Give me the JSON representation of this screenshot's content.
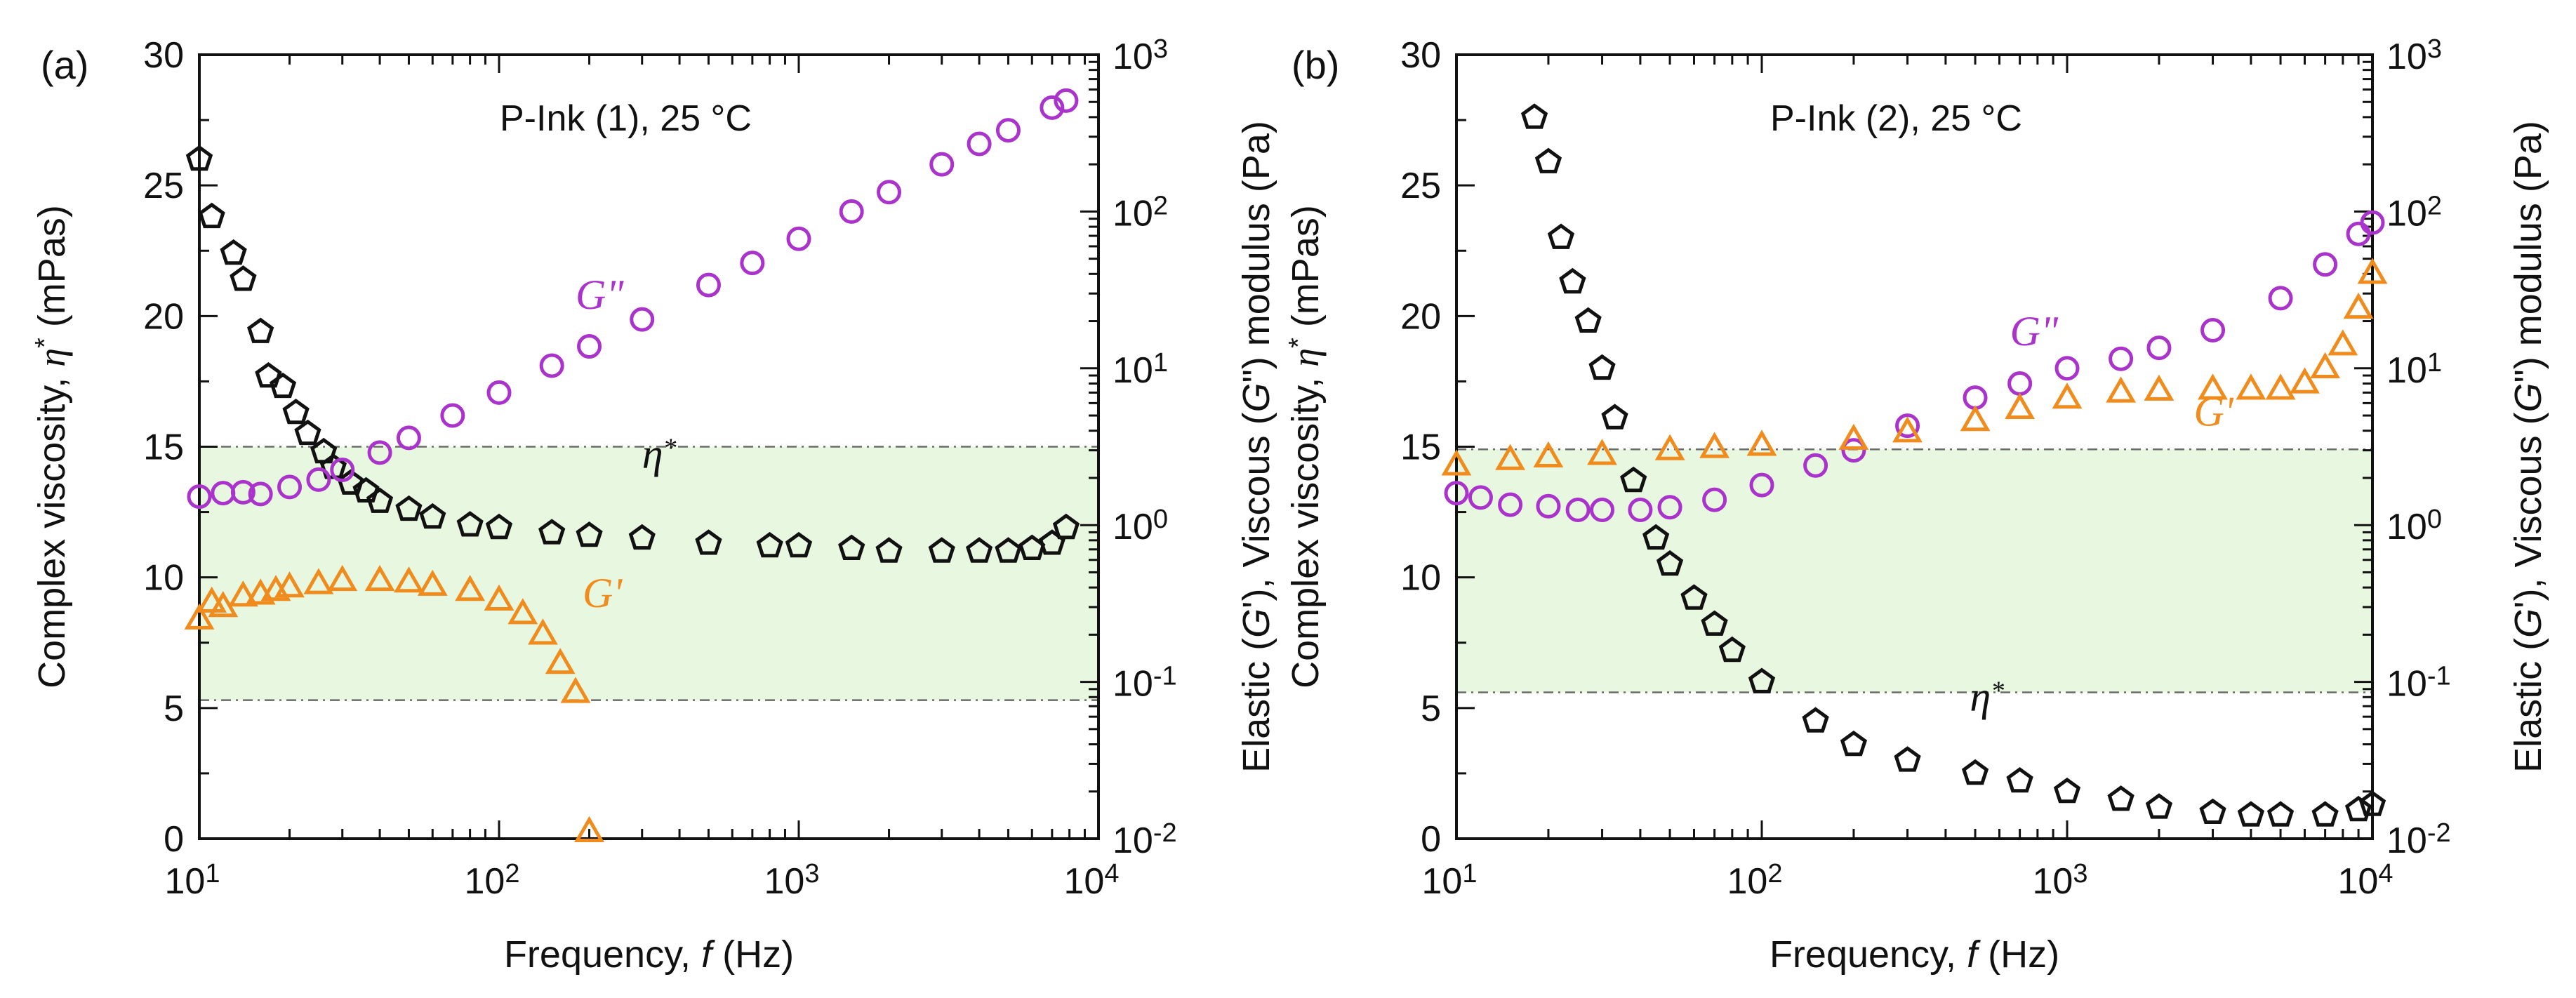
{
  "chart_data": [
    {
      "panel_label": "(a)",
      "type": "scatter",
      "annotation": "P-Ink (1), 25 °C",
      "xlabel_parts": [
        "Frequency, ",
        "f",
        " (Hz)"
      ],
      "ylabel_left_parts": [
        "Complex viscosity, ",
        "η",
        "*",
        " (mPas)"
      ],
      "ylabel_right_parts": [
        "Elastic (",
        "G",
        "'), Viscous (",
        "G",
        "\") modulus (Pa)"
      ],
      "x_scale": "log",
      "xlim": [
        10,
        10000
      ],
      "x_ticks": [
        {
          "base": "10",
          "exp": "1"
        },
        {
          "base": "10",
          "exp": "2"
        },
        {
          "base": "10",
          "exp": "3"
        },
        {
          "base": "10",
          "exp": "4"
        }
      ],
      "ylim_left": [
        0,
        30
      ],
      "y_ticks_left": [
        "0",
        "5",
        "10",
        "15",
        "20",
        "25",
        "30"
      ],
      "y_scale_right": "log",
      "ylim_right": [
        0.01,
        1000
      ],
      "y_ticks_right": [
        {
          "base": "10",
          "exp": "-2"
        },
        {
          "base": "10",
          "exp": "-1"
        },
        {
          "base": "10",
          "exp": "0"
        },
        {
          "base": "10",
          "exp": "1"
        },
        {
          "base": "10",
          "exp": "2"
        },
        {
          "base": "10",
          "exp": "3"
        }
      ],
      "band_left_units": [
        5.3,
        15.0
      ],
      "band_color": "#e8f7e0",
      "colors": {
        "eta": "#111111",
        "Gpp": "#aa33cc",
        "Gp": "#f08c1e"
      },
      "labels": {
        "eta": {
          "text": "η",
          "sup": "*",
          "x": 300,
          "y_left": 14.2
        },
        "Gpp": {
          "text": "G",
          "suffix": "\"",
          "x": 180,
          "y_right": 24
        },
        "Gp": {
          "text": "G",
          "suffix": "'",
          "x": 190,
          "y_right": 0.3
        }
      },
      "series": [
        {
          "name": "η*",
          "axis": "left",
          "marker": "pentagon",
          "x": [
            10,
            11,
            13,
            14,
            16,
            17,
            19,
            21,
            23,
            26,
            28,
            32,
            36,
            40,
            50,
            60,
            80,
            100,
            150,
            200,
            300,
            500,
            800,
            1000,
            1500,
            2000,
            3000,
            4000,
            5000,
            6000,
            7000,
            7800
          ],
          "y": [
            26.0,
            23.8,
            22.4,
            21.4,
            19.4,
            17.7,
            17.3,
            16.3,
            15.5,
            14.8,
            14.2,
            13.6,
            13.3,
            12.9,
            12.6,
            12.3,
            12.0,
            11.9,
            11.7,
            11.6,
            11.5,
            11.3,
            11.2,
            11.2,
            11.1,
            11.0,
            11.0,
            11.0,
            11.0,
            11.1,
            11.3,
            11.9
          ]
        },
        {
          "name": "G\"",
          "axis": "right",
          "marker": "circle",
          "x": [
            10,
            12,
            14,
            16,
            20,
            25,
            30,
            40,
            50,
            70,
            100,
            150,
            200,
            300,
            500,
            700,
            1000,
            1500,
            2000,
            3000,
            4000,
            5000,
            7000,
            7800
          ],
          "y": [
            1.52,
            1.6,
            1.62,
            1.58,
            1.75,
            1.95,
            2.25,
            2.9,
            3.6,
            5.0,
            7.0,
            10.4,
            13.8,
            20.5,
            34,
            47,
            67,
            100,
            133,
            200,
            270,
            330,
            460,
            510
          ]
        },
        {
          "name": "G'",
          "axis": "right",
          "marker": "triangle",
          "x": [
            10,
            11,
            12,
            14,
            16,
            18,
            20,
            25,
            30,
            40,
            50,
            60,
            80,
            100,
            120,
            140,
            160,
            180,
            200
          ],
          "y": [
            0.25,
            0.32,
            0.3,
            0.35,
            0.36,
            0.38,
            0.4,
            0.42,
            0.44,
            0.44,
            0.43,
            0.41,
            0.38,
            0.33,
            0.27,
            0.2,
            0.13,
            0.085,
            0.011
          ]
        }
      ]
    },
    {
      "panel_label": "(b)",
      "type": "scatter",
      "annotation": "P-Ink (2), 25 °C",
      "xlabel_parts": [
        "Frequency, ",
        "f",
        " (Hz)"
      ],
      "ylabel_left_parts": [
        "Complex viscosity, ",
        "η",
        "*",
        " (mPas)"
      ],
      "ylabel_right_parts": [
        "Elastic (",
        "G",
        "'), Viscous (",
        "G",
        "\") modulus (Pa)"
      ],
      "x_scale": "log",
      "xlim": [
        10,
        10000
      ],
      "x_ticks": [
        {
          "base": "10",
          "exp": "1"
        },
        {
          "base": "10",
          "exp": "2"
        },
        {
          "base": "10",
          "exp": "3"
        },
        {
          "base": "10",
          "exp": "4"
        }
      ],
      "ylim_left": [
        0,
        30
      ],
      "y_ticks_left": [
        "0",
        "5",
        "10",
        "15",
        "20",
        "25",
        "30"
      ],
      "y_scale_right": "log",
      "ylim_right": [
        0.01,
        1000
      ],
      "y_ticks_right": [
        {
          "base": "10",
          "exp": "-2"
        },
        {
          "base": "10",
          "exp": "-1"
        },
        {
          "base": "10",
          "exp": "0"
        },
        {
          "base": "10",
          "exp": "1"
        },
        {
          "base": "10",
          "exp": "2"
        },
        {
          "base": "10",
          "exp": "3"
        }
      ],
      "band_left_units": [
        5.6,
        14.9
      ],
      "band_color": "#e8f7e0",
      "colors": {
        "eta": "#111111",
        "Gpp": "#aa33cc",
        "Gp": "#f08c1e"
      },
      "labels": {
        "eta": {
          "text": "η",
          "sup": "*",
          "x": 480,
          "y_left": 4.9
        },
        "Gpp": {
          "text": "G",
          "suffix": "\"",
          "x": 650,
          "y_right": 14
        },
        "Gp": {
          "text": "G",
          "suffix": "'",
          "x": 2600,
          "y_right": 4.3
        }
      },
      "series": [
        {
          "name": "η*",
          "axis": "left",
          "marker": "pentagon",
          "x": [
            18,
            20,
            22,
            24,
            27,
            30,
            33,
            38,
            45,
            50,
            60,
            70,
            80,
            100,
            150,
            200,
            300,
            500,
            700,
            1000,
            1500,
            2000,
            3000,
            4000,
            5000,
            7000,
            9000,
            10000
          ],
          "y": [
            27.6,
            25.9,
            23.0,
            21.3,
            19.8,
            18.0,
            16.1,
            13.7,
            11.5,
            10.5,
            9.2,
            8.2,
            7.2,
            6.0,
            4.5,
            3.6,
            3.0,
            2.5,
            2.2,
            1.8,
            1.5,
            1.2,
            1.0,
            0.9,
            0.9,
            0.9,
            1.1,
            1.3
          ]
        },
        {
          "name": "G\"",
          "axis": "right",
          "marker": "circle",
          "x": [
            10,
            12,
            15,
            20,
            25,
            30,
            40,
            50,
            70,
            100,
            150,
            200,
            300,
            500,
            700,
            1000,
            1500,
            2000,
            3000,
            5000,
            7000,
            9000,
            10000
          ],
          "y": [
            1.6,
            1.5,
            1.35,
            1.32,
            1.25,
            1.25,
            1.25,
            1.3,
            1.45,
            1.8,
            2.4,
            3.0,
            4.3,
            6.5,
            8.0,
            10,
            11.5,
            13.5,
            17.5,
            28,
            46,
            72,
            85
          ]
        },
        {
          "name": "G'",
          "axis": "right",
          "marker": "triangle",
          "x": [
            10,
            15,
            20,
            30,
            50,
            70,
            100,
            200,
            300,
            500,
            700,
            1000,
            1500,
            2000,
            3000,
            4000,
            5000,
            6000,
            7000,
            8000,
            9000,
            10000
          ],
          "y": [
            2.4,
            2.6,
            2.7,
            2.8,
            3.0,
            3.1,
            3.2,
            3.5,
            3.9,
            4.6,
            5.5,
            6.4,
            7.0,
            7.2,
            7.3,
            7.3,
            7.3,
            8.0,
            10.0,
            14,
            24,
            40
          ]
        }
      ]
    }
  ]
}
